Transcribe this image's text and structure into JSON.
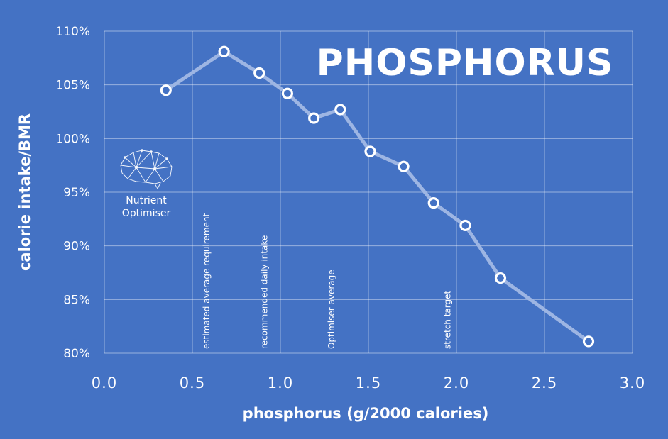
{
  "colors": {
    "background": "#4472C4",
    "line": "#9DB5E3",
    "marker_fill": "#4472C4",
    "marker_stroke": "#ffffff",
    "text": "#ffffff"
  },
  "logo": {
    "icon": "brain-network-icon",
    "line1": "Nutrient",
    "line2": "Optimiser"
  },
  "chart_data": {
    "type": "line",
    "title": "PHOSPHORUS",
    "xlabel": "phosphorus (g/2000 calories)",
    "ylabel": "calorie intake/BMR",
    "xlim": [
      0,
      3
    ],
    "ylim": [
      80,
      110
    ],
    "x_ticks": [
      0.0,
      0.5,
      1.0,
      1.5,
      2.0,
      2.5,
      3.0
    ],
    "x_tick_labels": [
      "0.0",
      "0.5",
      "1.0",
      "1.5",
      "2.0",
      "2.5",
      "3.0"
    ],
    "y_ticks": [
      80,
      85,
      90,
      95,
      100,
      105,
      110
    ],
    "y_tick_labels": [
      "80%",
      "85%",
      "90%",
      "95%",
      "100%",
      "105%",
      "110%"
    ],
    "grid": true,
    "series": [
      {
        "name": "calorie intake/BMR",
        "x": [
          0.35,
          0.68,
          0.88,
          1.04,
          1.19,
          1.34,
          1.51,
          1.7,
          1.87,
          2.05,
          2.25,
          2.75
        ],
        "y": [
          104.5,
          108.1,
          106.1,
          104.2,
          101.9,
          102.7,
          98.8,
          97.4,
          94.0,
          91.9,
          87.0,
          81.1
        ]
      }
    ],
    "annotations": [
      {
        "text": "estimated average requirement",
        "x": 0.58
      },
      {
        "text": "recommended daily intake",
        "x": 0.91
      },
      {
        "text": "Optimiser average",
        "x": 1.29
      },
      {
        "text": "stretch target",
        "x": 1.95
      }
    ]
  }
}
